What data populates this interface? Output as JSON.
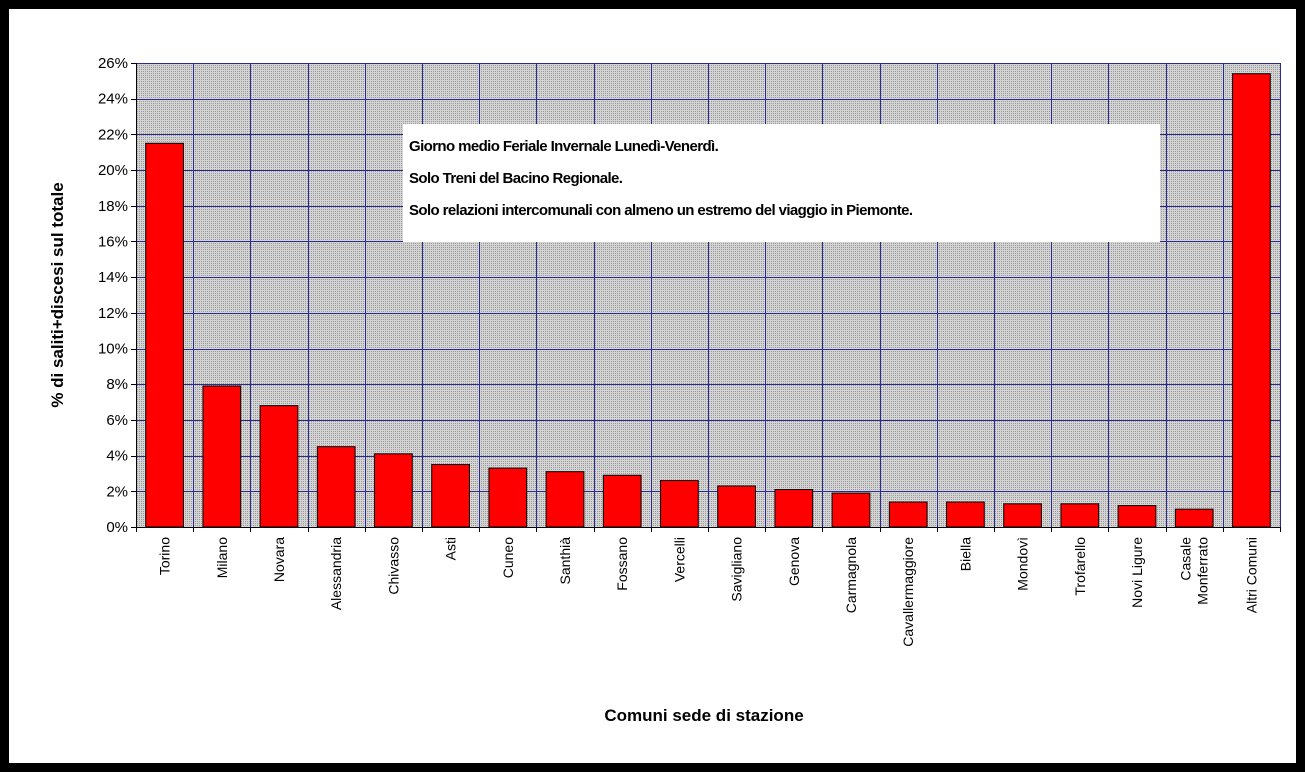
{
  "chart_data": {
    "type": "bar",
    "ylabel": "% di saliti+discesi sul totale",
    "xlabel": "Comuni sede di stazione",
    "ylim": [
      0,
      26
    ],
    "y_tick_step": 2,
    "y_tick_format": "percent",
    "grid": true,
    "bar_color": "#ff0000",
    "plot_background": "#c0c0c0",
    "gridline_color": "#2b2b8f",
    "categories": [
      [
        "Torino"
      ],
      [
        "Milano"
      ],
      [
        "Novara"
      ],
      [
        "Alessandria"
      ],
      [
        "Chivasso"
      ],
      [
        "Asti"
      ],
      [
        "Cuneo"
      ],
      [
        "Santhià"
      ],
      [
        "Fossano"
      ],
      [
        "Vercelli"
      ],
      [
        "Savigliano"
      ],
      [
        "Genova"
      ],
      [
        "Carmagnola"
      ],
      [
        "Cavallermaggiore"
      ],
      [
        "Biella"
      ],
      [
        "Mondovì"
      ],
      [
        "Trofarello"
      ],
      [
        "Novi Ligure"
      ],
      [
        "Casale",
        "Monferrato"
      ],
      [
        "Altri Comuni"
      ]
    ],
    "values": [
      21.5,
      7.9,
      6.8,
      4.5,
      4.1,
      3.5,
      3.3,
      3.1,
      2.9,
      2.6,
      2.3,
      2.1,
      1.9,
      1.4,
      1.4,
      1.3,
      1.3,
      1.2,
      1.0,
      25.4
    ]
  },
  "annotation": {
    "lines": [
      "Giorno medio Feriale Invernale Lunedì-Venerdì.",
      "Solo Treni del Bacino Regionale.",
      "Solo relazioni intercomunali con almeno un estremo del viaggio in Piemonte."
    ]
  }
}
